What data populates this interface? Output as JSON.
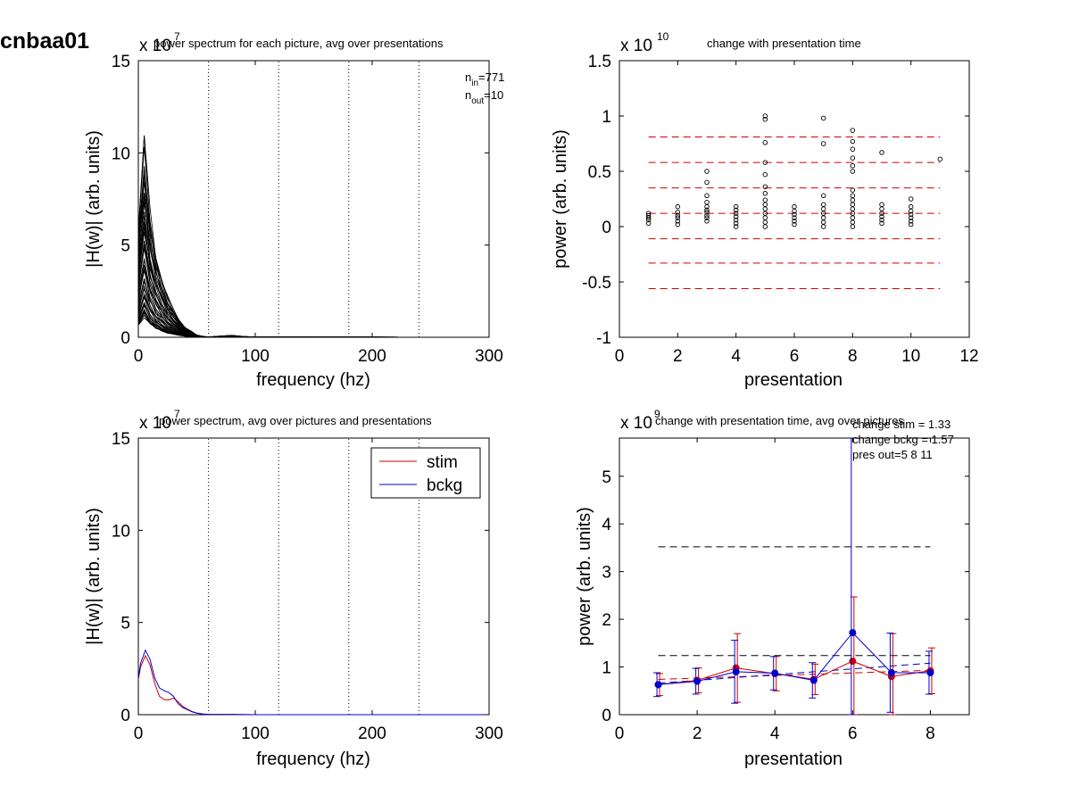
{
  "figure_title": "cnbaa01",
  "chart_data": [
    {
      "id": "p1",
      "type": "line",
      "title": "power spectrum for each picture, avg over presentations",
      "xlabel": "frequency (hz)",
      "ylabel": "|H(w)| (arb. units)",
      "xlim": [
        0,
        300
      ],
      "ylim": [
        0,
        15
      ],
      "y_exponent": "7",
      "x_ticks": [
        "0",
        "100",
        "200",
        "300"
      ],
      "y_ticks": [
        "0",
        "5",
        "10",
        "15"
      ],
      "vlines": [
        60,
        120,
        180,
        240,
        300
      ],
      "annotation": {
        "n_in_label": "n",
        "n_in_sub": "in",
        "n_in_value": "=771",
        "n_out_label": "n",
        "n_out_sub": "out",
        "n_out_value": "=10"
      },
      "series_count": 50,
      "series_x": [
        0,
        5,
        10,
        15,
        20,
        25,
        30,
        35,
        40,
        45,
        50,
        55,
        60,
        70,
        80,
        90,
        100,
        150,
        200,
        250,
        300
      ],
      "series_y_profile": [
        0.55,
        1.0,
        0.62,
        0.42,
        0.3,
        0.2,
        0.14,
        0.09,
        0.05,
        0.03,
        0.012,
        0.005,
        0.002,
        0.006,
        0.01,
        0.004,
        0.002,
        0.001,
        0.001,
        0.0,
        0.0
      ],
      "series_peak_range": [
        1.2,
        10.6
      ],
      "color": "#000000"
    },
    {
      "id": "p2",
      "type": "scatter",
      "title": "change with presentation time",
      "xlabel": "presentation",
      "ylabel": "power (arb. units)",
      "xlim": [
        0,
        12
      ],
      "ylim": [
        -1,
        1.5
      ],
      "y_exponent": "10",
      "x_ticks": [
        "0",
        "2",
        "4",
        "6",
        "8",
        "10",
        "12"
      ],
      "y_ticks": [
        "-1",
        "-0.5",
        "0",
        "0.5",
        "1",
        "1.5"
      ],
      "hlines": [
        0.81,
        0.58,
        0.35,
        0.12,
        -0.11,
        -0.33,
        -0.56
      ],
      "hline_range": [
        1,
        11
      ],
      "hline_color": "#cc0000",
      "points": [
        {
          "x": 1,
          "y": [
            0.03,
            0.06,
            0.08,
            0.1,
            0.12
          ]
        },
        {
          "x": 2,
          "y": [
            0.02,
            0.05,
            0.08,
            0.1,
            0.13,
            0.18
          ]
        },
        {
          "x": 3,
          "y": [
            0.05,
            0.08,
            0.1,
            0.13,
            0.15,
            0.18,
            0.22,
            0.28,
            0.4,
            0.5
          ]
        },
        {
          "x": 4,
          "y": [
            0.0,
            0.03,
            0.06,
            0.09,
            0.12,
            0.15,
            0.18
          ]
        },
        {
          "x": 5,
          "y": [
            0.0,
            0.04,
            0.08,
            0.12,
            0.16,
            0.2,
            0.24,
            0.3,
            0.36,
            0.47,
            0.58,
            0.76,
            0.97,
            1.0
          ]
        },
        {
          "x": 6,
          "y": [
            0.02,
            0.05,
            0.08,
            0.11,
            0.14,
            0.18
          ]
        },
        {
          "x": 7,
          "y": [
            0.0,
            0.04,
            0.08,
            0.12,
            0.16,
            0.2,
            0.28,
            0.75,
            0.98
          ]
        },
        {
          "x": 8,
          "y": [
            0.0,
            0.04,
            0.08,
            0.12,
            0.16,
            0.2,
            0.24,
            0.28,
            0.33,
            0.5,
            0.55,
            0.62,
            0.7,
            0.77,
            0.87
          ]
        },
        {
          "x": 9,
          "y": [
            0.03,
            0.06,
            0.09,
            0.12,
            0.16,
            0.2,
            0.67
          ]
        },
        {
          "x": 10,
          "y": [
            0.02,
            0.05,
            0.08,
            0.11,
            0.14,
            0.18,
            0.25
          ]
        },
        {
          "x": 11,
          "y": [
            0.61
          ]
        }
      ]
    },
    {
      "id": "p3",
      "type": "line",
      "title": "power spectrum, avg over pictures and presentations",
      "xlabel": "frequency (hz)",
      "ylabel": "|H(w)| (arb. units)",
      "xlim": [
        0,
        300
      ],
      "ylim": [
        0,
        15
      ],
      "y_exponent": "7",
      "x_ticks": [
        "0",
        "100",
        "200",
        "300"
      ],
      "y_ticks": [
        "0",
        "5",
        "10",
        "15"
      ],
      "vlines": [
        60,
        120,
        180,
        240,
        300
      ],
      "legend": {
        "placement": "top-right"
      },
      "series": [
        {
          "name": "stim",
          "color": "#cc0000",
          "x": [
            0,
            2,
            6,
            10,
            14,
            18,
            22,
            26,
            30,
            34,
            38,
            42,
            46,
            50,
            55,
            60,
            80,
            100,
            150,
            200,
            250,
            300
          ],
          "values": [
            1.9,
            2.6,
            3.2,
            2.7,
            1.7,
            1.0,
            0.82,
            0.8,
            0.9,
            0.7,
            0.45,
            0.3,
            0.17,
            0.09,
            0.04,
            0.02,
            0.01,
            0.0,
            0.0,
            0.0,
            0.0,
            0.0
          ]
        },
        {
          "name": "bckg",
          "color": "#0000cc",
          "x": [
            0,
            2,
            6,
            10,
            14,
            18,
            22,
            26,
            30,
            34,
            38,
            42,
            46,
            50,
            55,
            60,
            80,
            100,
            150,
            200,
            250,
            300
          ],
          "values": [
            2.0,
            2.8,
            3.5,
            3.0,
            2.0,
            1.45,
            1.3,
            1.2,
            1.0,
            0.6,
            0.38,
            0.27,
            0.15,
            0.08,
            0.04,
            0.02,
            0.01,
            0.0,
            0.0,
            0.0,
            0.0,
            0.0
          ]
        }
      ]
    },
    {
      "id": "p4",
      "type": "line",
      "title": "change with presentation time, avg over pictures",
      "xlabel": "presentation",
      "ylabel": "power (arb. units)",
      "xlim": [
        0,
        9
      ],
      "ylim": [
        0,
        5.8
      ],
      "y_exponent": "9",
      "x_ticks": [
        "0",
        "2",
        "4",
        "6",
        "8"
      ],
      "y_ticks": [
        "0",
        "1",
        "2",
        "3",
        "4",
        "5"
      ],
      "annotations": [
        "change stim = 1.33",
        "change bckg = 1.57",
        "pres out=5 8 11"
      ],
      "hlines_black": [
        3.52,
        1.24
      ],
      "hline_range": [
        1,
        8
      ],
      "fit_lines": [
        {
          "color": "#cc0000",
          "y_start": 0.74,
          "y_end": 0.93
        },
        {
          "color": "#0000cc",
          "y_start": 0.66,
          "y_end": 1.08
        }
      ],
      "series": [
        {
          "name": "stim",
          "color": "#cc0000",
          "x": [
            1,
            2,
            3,
            4,
            5,
            6,
            7,
            8
          ],
          "values": [
            0.63,
            0.72,
            0.98,
            0.86,
            0.74,
            1.12,
            0.8,
            0.92
          ],
          "err": [
            0.23,
            0.26,
            0.72,
            0.36,
            0.32,
            1.35,
            0.9,
            0.48
          ]
        },
        {
          "name": "bckg",
          "color": "#0000cc",
          "x": [
            1,
            2,
            3,
            4,
            5,
            6,
            7,
            8
          ],
          "values": [
            0.63,
            0.7,
            0.9,
            0.87,
            0.72,
            1.72,
            0.88,
            0.88
          ],
          "err": [
            0.25,
            0.27,
            0.66,
            0.35,
            0.37,
            4.1,
            0.83,
            0.45
          ]
        }
      ]
    }
  ]
}
